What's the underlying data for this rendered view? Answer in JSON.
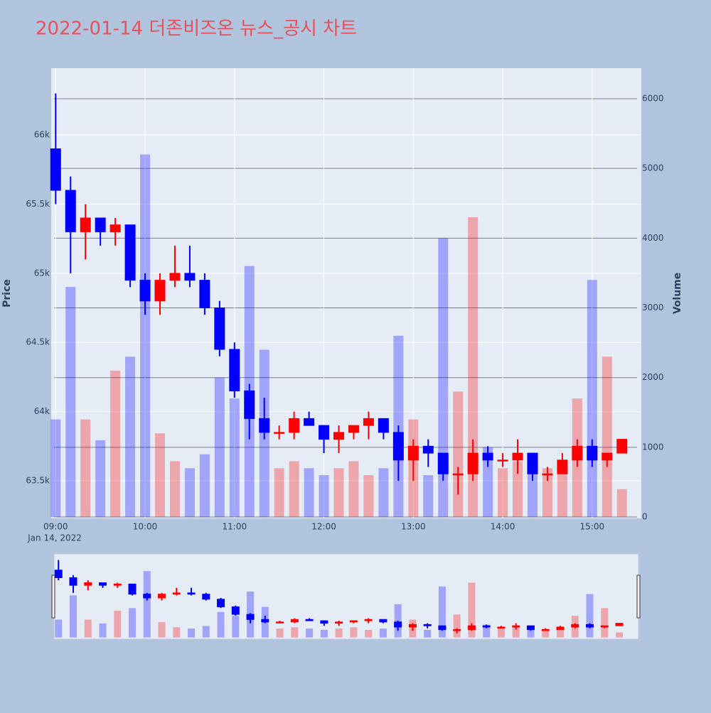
{
  "chart_data": {
    "type": "candlestick",
    "title": "2022-01-14 더존비즈온 뉴스_공시 차트",
    "ylabel": "Price",
    "y2label": "Volume",
    "x_date_label": "Jan 14, 2022",
    "increasing_color": "#ff0000",
    "decreasing_color": "#0000ff",
    "x": [
      "2022-01-14 09:00",
      "2022-01-14 09:10",
      "2022-01-14 09:20",
      "2022-01-14 09:30",
      "2022-01-14 09:40",
      "2022-01-14 09:50",
      "2022-01-14 10:00",
      "2022-01-14 10:10",
      "2022-01-14 10:20",
      "2022-01-14 10:30",
      "2022-01-14 10:40",
      "2022-01-14 10:50",
      "2022-01-14 11:00",
      "2022-01-14 11:10",
      "2022-01-14 11:20",
      "2022-01-14 11:30",
      "2022-01-14 11:40",
      "2022-01-14 11:50",
      "2022-01-14 12:00",
      "2022-01-14 12:10",
      "2022-01-14 12:20",
      "2022-01-14 12:30",
      "2022-01-14 12:40",
      "2022-01-14 12:50",
      "2022-01-14 13:00",
      "2022-01-14 13:10",
      "2022-01-14 13:20",
      "2022-01-14 13:30",
      "2022-01-14 13:40",
      "2022-01-14 13:50",
      "2022-01-14 14:00",
      "2022-01-14 14:10",
      "2022-01-14 14:20",
      "2022-01-14 14:30",
      "2022-01-14 14:40",
      "2022-01-14 14:50",
      "2022-01-14 15:00",
      "2022-01-14 15:10",
      "2022-01-14 15:20"
    ],
    "open": [
      65900,
      65600,
      65300,
      65400,
      65300,
      65350,
      64950,
      64800,
      64950,
      65000,
      64950,
      64750,
      64450,
      64150,
      63950,
      63850,
      63850,
      63950,
      63900,
      63800,
      63850,
      63900,
      63950,
      63850,
      63650,
      63750,
      63700,
      63550,
      63550,
      63700,
      63650,
      63650,
      63700,
      63550,
      63550,
      63650,
      63750,
      63650,
      63700
    ],
    "high": [
      66300,
      65700,
      65500,
      65400,
      65400,
      65350,
      65000,
      65000,
      65200,
      65200,
      65000,
      64800,
      64500,
      64200,
      64100,
      63900,
      64000,
      64000,
      63900,
      63900,
      63900,
      64000,
      63950,
      63900,
      63800,
      63800,
      63700,
      63600,
      63800,
      63750,
      63700,
      63800,
      63700,
      63600,
      63700,
      63800,
      63800,
      63700,
      63800
    ],
    "low": [
      65500,
      65000,
      65100,
      65200,
      65200,
      64900,
      64700,
      64700,
      64900,
      64900,
      64700,
      64400,
      64100,
      63800,
      63800,
      63800,
      63800,
      63900,
      63700,
      63700,
      63800,
      63800,
      63800,
      63500,
      63500,
      63600,
      63500,
      63400,
      63500,
      63600,
      63600,
      63550,
      63500,
      63500,
      63550,
      63600,
      63600,
      63600,
      63700
    ],
    "close": [
      65600,
      65300,
      65400,
      65300,
      65350,
      64950,
      64800,
      64950,
      65000,
      64950,
      64750,
      64450,
      64150,
      63950,
      63850,
      63850,
      63950,
      63900,
      63800,
      63850,
      63900,
      63950,
      63850,
      63650,
      63750,
      63700,
      63550,
      63550,
      63700,
      63650,
      63650,
      63700,
      63550,
      63550,
      63650,
      63750,
      63650,
      63700,
      63800
    ],
    "volume": [
      1400,
      3300,
      1400,
      1100,
      2100,
      2300,
      5200,
      1200,
      800,
      700,
      900,
      2000,
      1700,
      3600,
      2400,
      700,
      800,
      700,
      600,
      700,
      800,
      600,
      700,
      2600,
      1400,
      600,
      4000,
      1800,
      4300,
      1000,
      700,
      800,
      700,
      700,
      700,
      1700,
      3400,
      2300,
      400
    ],
    "xlim": [
      "2022-01-14 08:57",
      "2022-01-14 15:33"
    ],
    "xticks": [
      {
        "value": "2022-01-14 09:00",
        "label": "09:00"
      },
      {
        "value": "2022-01-14 10:00",
        "label": "10:00"
      },
      {
        "value": "2022-01-14 11:00",
        "label": "11:00"
      },
      {
        "value": "2022-01-14 12:00",
        "label": "12:00"
      },
      {
        "value": "2022-01-14 13:00",
        "label": "13:00"
      },
      {
        "value": "2022-01-14 14:00",
        "label": "14:00"
      },
      {
        "value": "2022-01-14 15:00",
        "label": "15:00"
      }
    ],
    "ylim": [
      63228,
      66483
    ],
    "yticks": [
      {
        "value": 63500,
        "label": "63.5k"
      },
      {
        "value": 64000,
        "label": "64k"
      },
      {
        "value": 64500,
        "label": "64.5k"
      },
      {
        "value": 65000,
        "label": "65k"
      },
      {
        "value": 65500,
        "label": "65.5k"
      },
      {
        "value": 66000,
        "label": "66k"
      }
    ],
    "y2lim": [
      -20,
      6438
    ],
    "y2ticks": [
      0,
      1000,
      2000,
      3000,
      4000,
      5000,
      6000
    ],
    "rangeslider": true
  }
}
